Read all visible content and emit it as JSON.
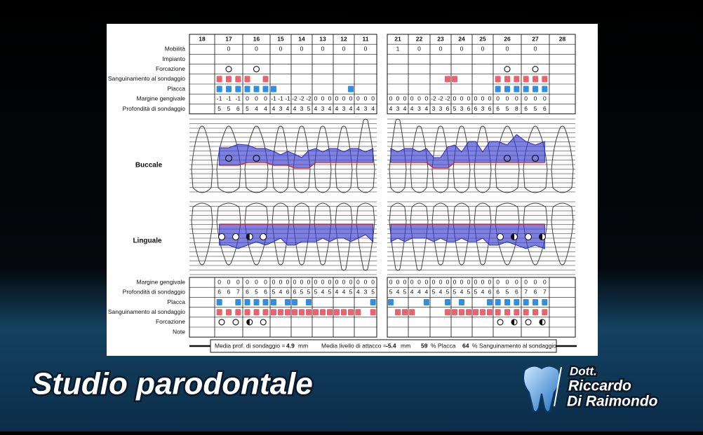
{
  "teeth": [
    18,
    17,
    16,
    15,
    14,
    13,
    12,
    11,
    21,
    22,
    23,
    24,
    25,
    26,
    27,
    28
  ],
  "upper_table": {
    "mobilita": {
      "label": "Mobilità",
      "values": [
        null,
        0,
        0,
        0,
        0,
        0,
        0,
        0,
        1,
        0,
        0,
        0,
        0,
        0,
        0,
        null
      ]
    },
    "impianto": {
      "label": "Impianto"
    },
    "forcazione": {
      "label": "Forcazione",
      "values": [
        null,
        1,
        1,
        null,
        null,
        null,
        null,
        null,
        null,
        null,
        null,
        null,
        null,
        1,
        1,
        null
      ]
    },
    "sanguinamento": {
      "label": "Sanguinamento al sondaggio",
      "values": [
        null,
        [
          1,
          1,
          1
        ],
        [
          1,
          0,
          1
        ],
        [
          0,
          0,
          0
        ],
        [
          0,
          0,
          0
        ],
        [
          0,
          0,
          0
        ],
        [
          0,
          0,
          0
        ],
        [
          0,
          0,
          0
        ],
        [
          0,
          0,
          0
        ],
        [
          0,
          0,
          0
        ],
        [
          0,
          0,
          1
        ],
        [
          1,
          0,
          0
        ],
        [
          0,
          0,
          0
        ],
        [
          1,
          1,
          1
        ],
        [
          1,
          1,
          1
        ],
        null
      ]
    },
    "placca": {
      "label": "Placca",
      "values": [
        null,
        [
          1,
          1,
          1
        ],
        [
          1,
          1,
          1
        ],
        [
          1,
          0,
          0
        ],
        [
          0,
          0,
          0
        ],
        [
          0,
          0,
          0
        ],
        [
          0,
          0,
          1
        ],
        [
          0,
          0,
          0
        ],
        [
          0,
          0,
          0
        ],
        [
          0,
          0,
          0
        ],
        [
          0,
          0,
          0
        ],
        [
          0,
          0,
          0
        ],
        [
          0,
          0,
          0
        ],
        [
          1,
          1,
          1
        ],
        [
          1,
          1,
          1
        ],
        null
      ]
    },
    "margine": {
      "label": "Margine gengivale",
      "values": [
        null,
        [
          -1,
          -1,
          -1
        ],
        [
          0,
          0,
          0
        ],
        [
          -1,
          -1,
          -1
        ],
        [
          -2,
          -2,
          -2
        ],
        [
          0,
          0,
          0
        ],
        [
          0,
          0,
          0
        ],
        [
          0,
          0,
          0
        ],
        [
          0,
          0,
          0
        ],
        [
          0,
          0,
          0
        ],
        [
          -2,
          -2,
          -2
        ],
        [
          0,
          0,
          0
        ],
        [
          0,
          0,
          0
        ],
        [
          0,
          0,
          0
        ],
        [
          0,
          0,
          0
        ],
        null
      ]
    },
    "profondita": {
      "label": "Profondità di sondaggio",
      "values": [
        null,
        [
          5,
          5,
          6
        ],
        [
          5,
          4,
          4
        ],
        [
          4,
          3,
          4
        ],
        [
          4,
          3,
          5
        ],
        [
          4,
          3,
          4
        ],
        [
          4,
          3,
          4
        ],
        [
          4,
          3,
          4
        ],
        [
          4,
          3,
          4
        ],
        [
          4,
          3,
          4
        ],
        [
          3,
          3,
          6
        ],
        [
          5,
          3,
          6
        ],
        [
          6,
          3,
          6
        ],
        [
          6,
          5,
          8
        ],
        [
          6,
          5,
          6
        ],
        null
      ]
    }
  },
  "charts": {
    "buccale": "Buccale",
    "linguale": "Linguale"
  },
  "lower_table": {
    "margine": {
      "label": "Margine gengivale",
      "values": [
        null,
        [
          0,
          0,
          0
        ],
        [
          0,
          0,
          0
        ],
        [
          0,
          0,
          0
        ],
        [
          0,
          0,
          0
        ],
        [
          0,
          0,
          0
        ],
        [
          0,
          0,
          0
        ],
        [
          0,
          0,
          0
        ],
        [
          0,
          0,
          0
        ],
        [
          0,
          0,
          0
        ],
        [
          0,
          0,
          0
        ],
        [
          0,
          0,
          0
        ],
        [
          0,
          0,
          0
        ],
        [
          0,
          0,
          0
        ],
        [
          0,
          0,
          0
        ],
        null
      ]
    },
    "profondita": {
      "label": "Profondità di sondaggio",
      "values": [
        null,
        [
          6,
          6,
          7
        ],
        [
          6,
          5,
          6
        ],
        [
          5,
          4,
          6
        ],
        [
          6,
          5,
          5
        ],
        [
          5,
          4,
          5
        ],
        [
          4,
          4,
          5
        ],
        [
          4,
          3,
          5
        ],
        [
          5,
          4,
          5
        ],
        [
          4,
          4,
          4
        ],
        [
          5,
          4,
          5
        ],
        [
          5,
          4,
          5
        ],
        [
          5,
          4,
          6
        ],
        [
          6,
          5,
          6
        ],
        [
          7,
          6,
          7
        ],
        null
      ]
    },
    "placca": {
      "label": "Placca",
      "values": [
        null,
        [
          1,
          0,
          1
        ],
        [
          1,
          1,
          1
        ],
        [
          1,
          0,
          1
        ],
        [
          1,
          0,
          1
        ],
        [
          0,
          0,
          0
        ],
        [
          0,
          0,
          0
        ],
        [
          0,
          0,
          1
        ],
        [
          1,
          0,
          0
        ],
        [
          0,
          0,
          1
        ],
        [
          0,
          0,
          1
        ],
        [
          0,
          1,
          0
        ],
        [
          0,
          0,
          1
        ],
        [
          1,
          1,
          1
        ],
        [
          1,
          1,
          1
        ],
        null
      ]
    },
    "sanguinamento": {
      "label": "Sanguinamento al sondaggio",
      "values": [
        null,
        [
          1,
          1,
          1
        ],
        [
          1,
          1,
          1
        ],
        [
          1,
          1,
          1
        ],
        [
          1,
          1,
          1
        ],
        [
          1,
          1,
          1
        ],
        [
          1,
          1,
          1
        ],
        [
          1,
          0,
          1
        ],
        [
          0,
          1,
          1
        ],
        [
          1,
          0,
          0
        ],
        [
          0,
          0,
          1
        ],
        [
          1,
          1,
          1
        ],
        [
          1,
          1,
          1
        ],
        [
          1,
          1,
          1
        ],
        [
          1,
          1,
          1
        ],
        null
      ]
    },
    "forcazione": {
      "label": "Forcazione",
      "values": [
        null,
        [
          1,
          1
        ],
        [
          2,
          1
        ],
        null,
        null,
        null,
        null,
        null,
        null,
        null,
        null,
        null,
        null,
        [
          1,
          2
        ],
        [
          1,
          2
        ],
        null
      ]
    },
    "note": {
      "label": "Note"
    }
  },
  "summary": {
    "depth_label": "Media prof. di sondaggio =",
    "depth": 4.9,
    "depth_unit": "mm",
    "attach_label": "Media livello di attacco =",
    "attach": -5.4,
    "attach_unit": "mm",
    "plaque": 59,
    "plaque_label": "% Placca",
    "bleeding": 64,
    "bleeding_label": "% Sanguinamento al sondaggio"
  },
  "footer": {
    "title": "Studio parodontale",
    "doctor": [
      "Dott.",
      "Riccardo",
      "Di Raimondo"
    ]
  }
}
